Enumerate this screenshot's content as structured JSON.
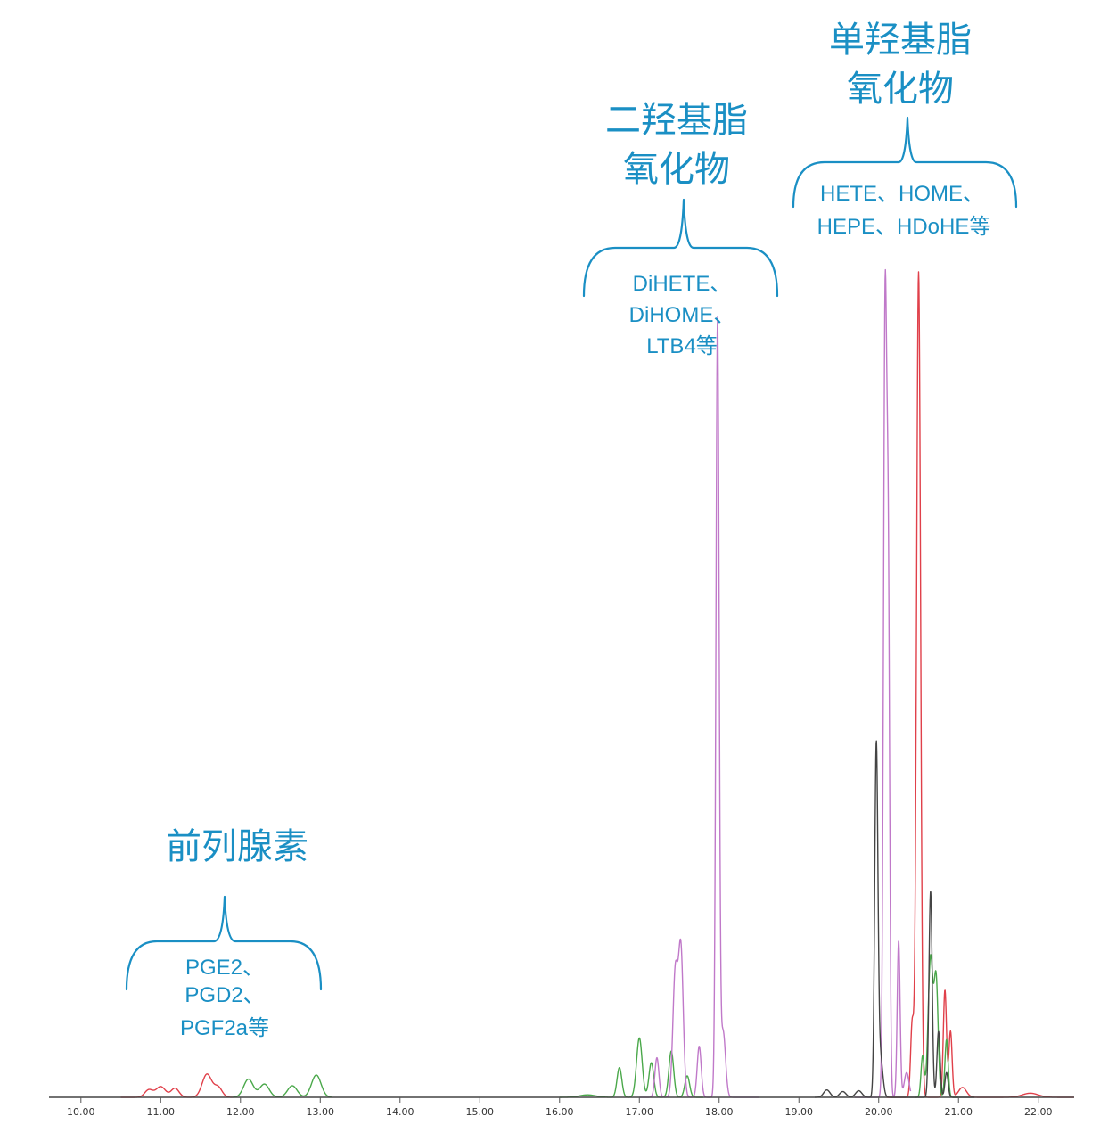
{
  "chart_data": {
    "type": "line",
    "title": "",
    "xlabel": "",
    "ylabel": "",
    "xlim": [
      9.6,
      22.45
    ],
    "ylim": [
      0,
      100
    ],
    "x_ticks": [
      "10.00",
      "11.00",
      "12.00",
      "13.00",
      "14.00",
      "15.00",
      "16.00",
      "17.00",
      "18.00",
      "19.00",
      "20.00",
      "21.00",
      "22.00"
    ],
    "grid": false,
    "series": [
      {
        "color": "#e0404a",
        "peaks": [
          [
            10.85,
            0.9,
            0.05
          ],
          [
            11.0,
            1.3,
            0.06
          ],
          [
            11.18,
            1.1,
            0.05
          ],
          [
            11.58,
            2.8,
            0.06
          ],
          [
            11.72,
            1.2,
            0.05
          ],
          [
            20.42,
            9,
            0.02
          ],
          [
            20.5,
            100,
            0.025
          ],
          [
            20.83,
            13,
            0.02
          ],
          [
            20.9,
            8,
            0.02
          ],
          [
            21.05,
            1.2,
            0.05
          ],
          [
            21.9,
            0.5,
            0.1
          ]
        ],
        "segments": [
          [
            10.5,
            11.9
          ],
          [
            20.1,
            22.45
          ]
        ]
      },
      {
        "color": "#4aa84a",
        "peaks": [
          [
            12.1,
            2.2,
            0.06
          ],
          [
            12.3,
            1.6,
            0.06
          ],
          [
            12.65,
            1.4,
            0.06
          ],
          [
            12.95,
            2.7,
            0.06
          ],
          [
            16.35,
            0.3,
            0.1
          ],
          [
            16.75,
            3.6,
            0.03
          ],
          [
            17.0,
            7.2,
            0.035
          ],
          [
            17.15,
            4.2,
            0.03
          ],
          [
            17.4,
            5.6,
            0.03
          ],
          [
            17.6,
            2.6,
            0.03
          ],
          [
            20.55,
            5,
            0.02
          ],
          [
            20.65,
            17,
            0.03
          ],
          [
            20.72,
            14,
            0.025
          ],
          [
            20.85,
            7,
            0.02
          ]
        ],
        "segments": [
          [
            11.9,
            13.15
          ],
          [
            16.0,
            17.8
          ],
          [
            20.45,
            21.0
          ]
        ]
      },
      {
        "color": "#c079c9",
        "peaks": [
          [
            17.22,
            4.8,
            0.025
          ],
          [
            17.45,
            15,
            0.03
          ],
          [
            17.52,
            18,
            0.03
          ],
          [
            17.75,
            6.2,
            0.025
          ],
          [
            17.98,
            94,
            0.02
          ],
          [
            18.05,
            8,
            0.03
          ],
          [
            20.08,
            94,
            0.02
          ],
          [
            20.12,
            60,
            0.018
          ],
          [
            20.25,
            19,
            0.018
          ],
          [
            20.35,
            3,
            0.03
          ]
        ],
        "segments": [
          [
            17.0,
            18.5
          ],
          [
            19.7,
            20.4
          ]
        ]
      },
      {
        "color": "#444444",
        "peaks": [
          [
            19.35,
            0.9,
            0.04
          ],
          [
            19.55,
            0.7,
            0.04
          ],
          [
            19.75,
            0.8,
            0.04
          ],
          [
            19.97,
            42,
            0.02
          ],
          [
            20.02,
            5,
            0.03
          ],
          [
            20.65,
            25,
            0.02
          ],
          [
            20.75,
            8,
            0.02
          ],
          [
            20.85,
            3,
            0.02
          ]
        ],
        "segments": [
          [
            19.2,
            21.2
          ]
        ]
      }
    ],
    "annotations": [
      {
        "title_lines": [
          "前列腺素"
        ],
        "items_lines": [
          "PGE2、",
          "PGD2、",
          "PGF2a等"
        ]
      },
      {
        "title_lines": [
          "二羟基脂",
          "氧化物"
        ],
        "items_lines": [
          "DiHETE、",
          "DiHOME、",
          "LTB4等"
        ]
      },
      {
        "title_lines": [
          "单羟基脂",
          "氧化物"
        ],
        "items_lines": [
          "HETE、HOME、",
          "HEPE、HDoHE等"
        ]
      }
    ]
  }
}
